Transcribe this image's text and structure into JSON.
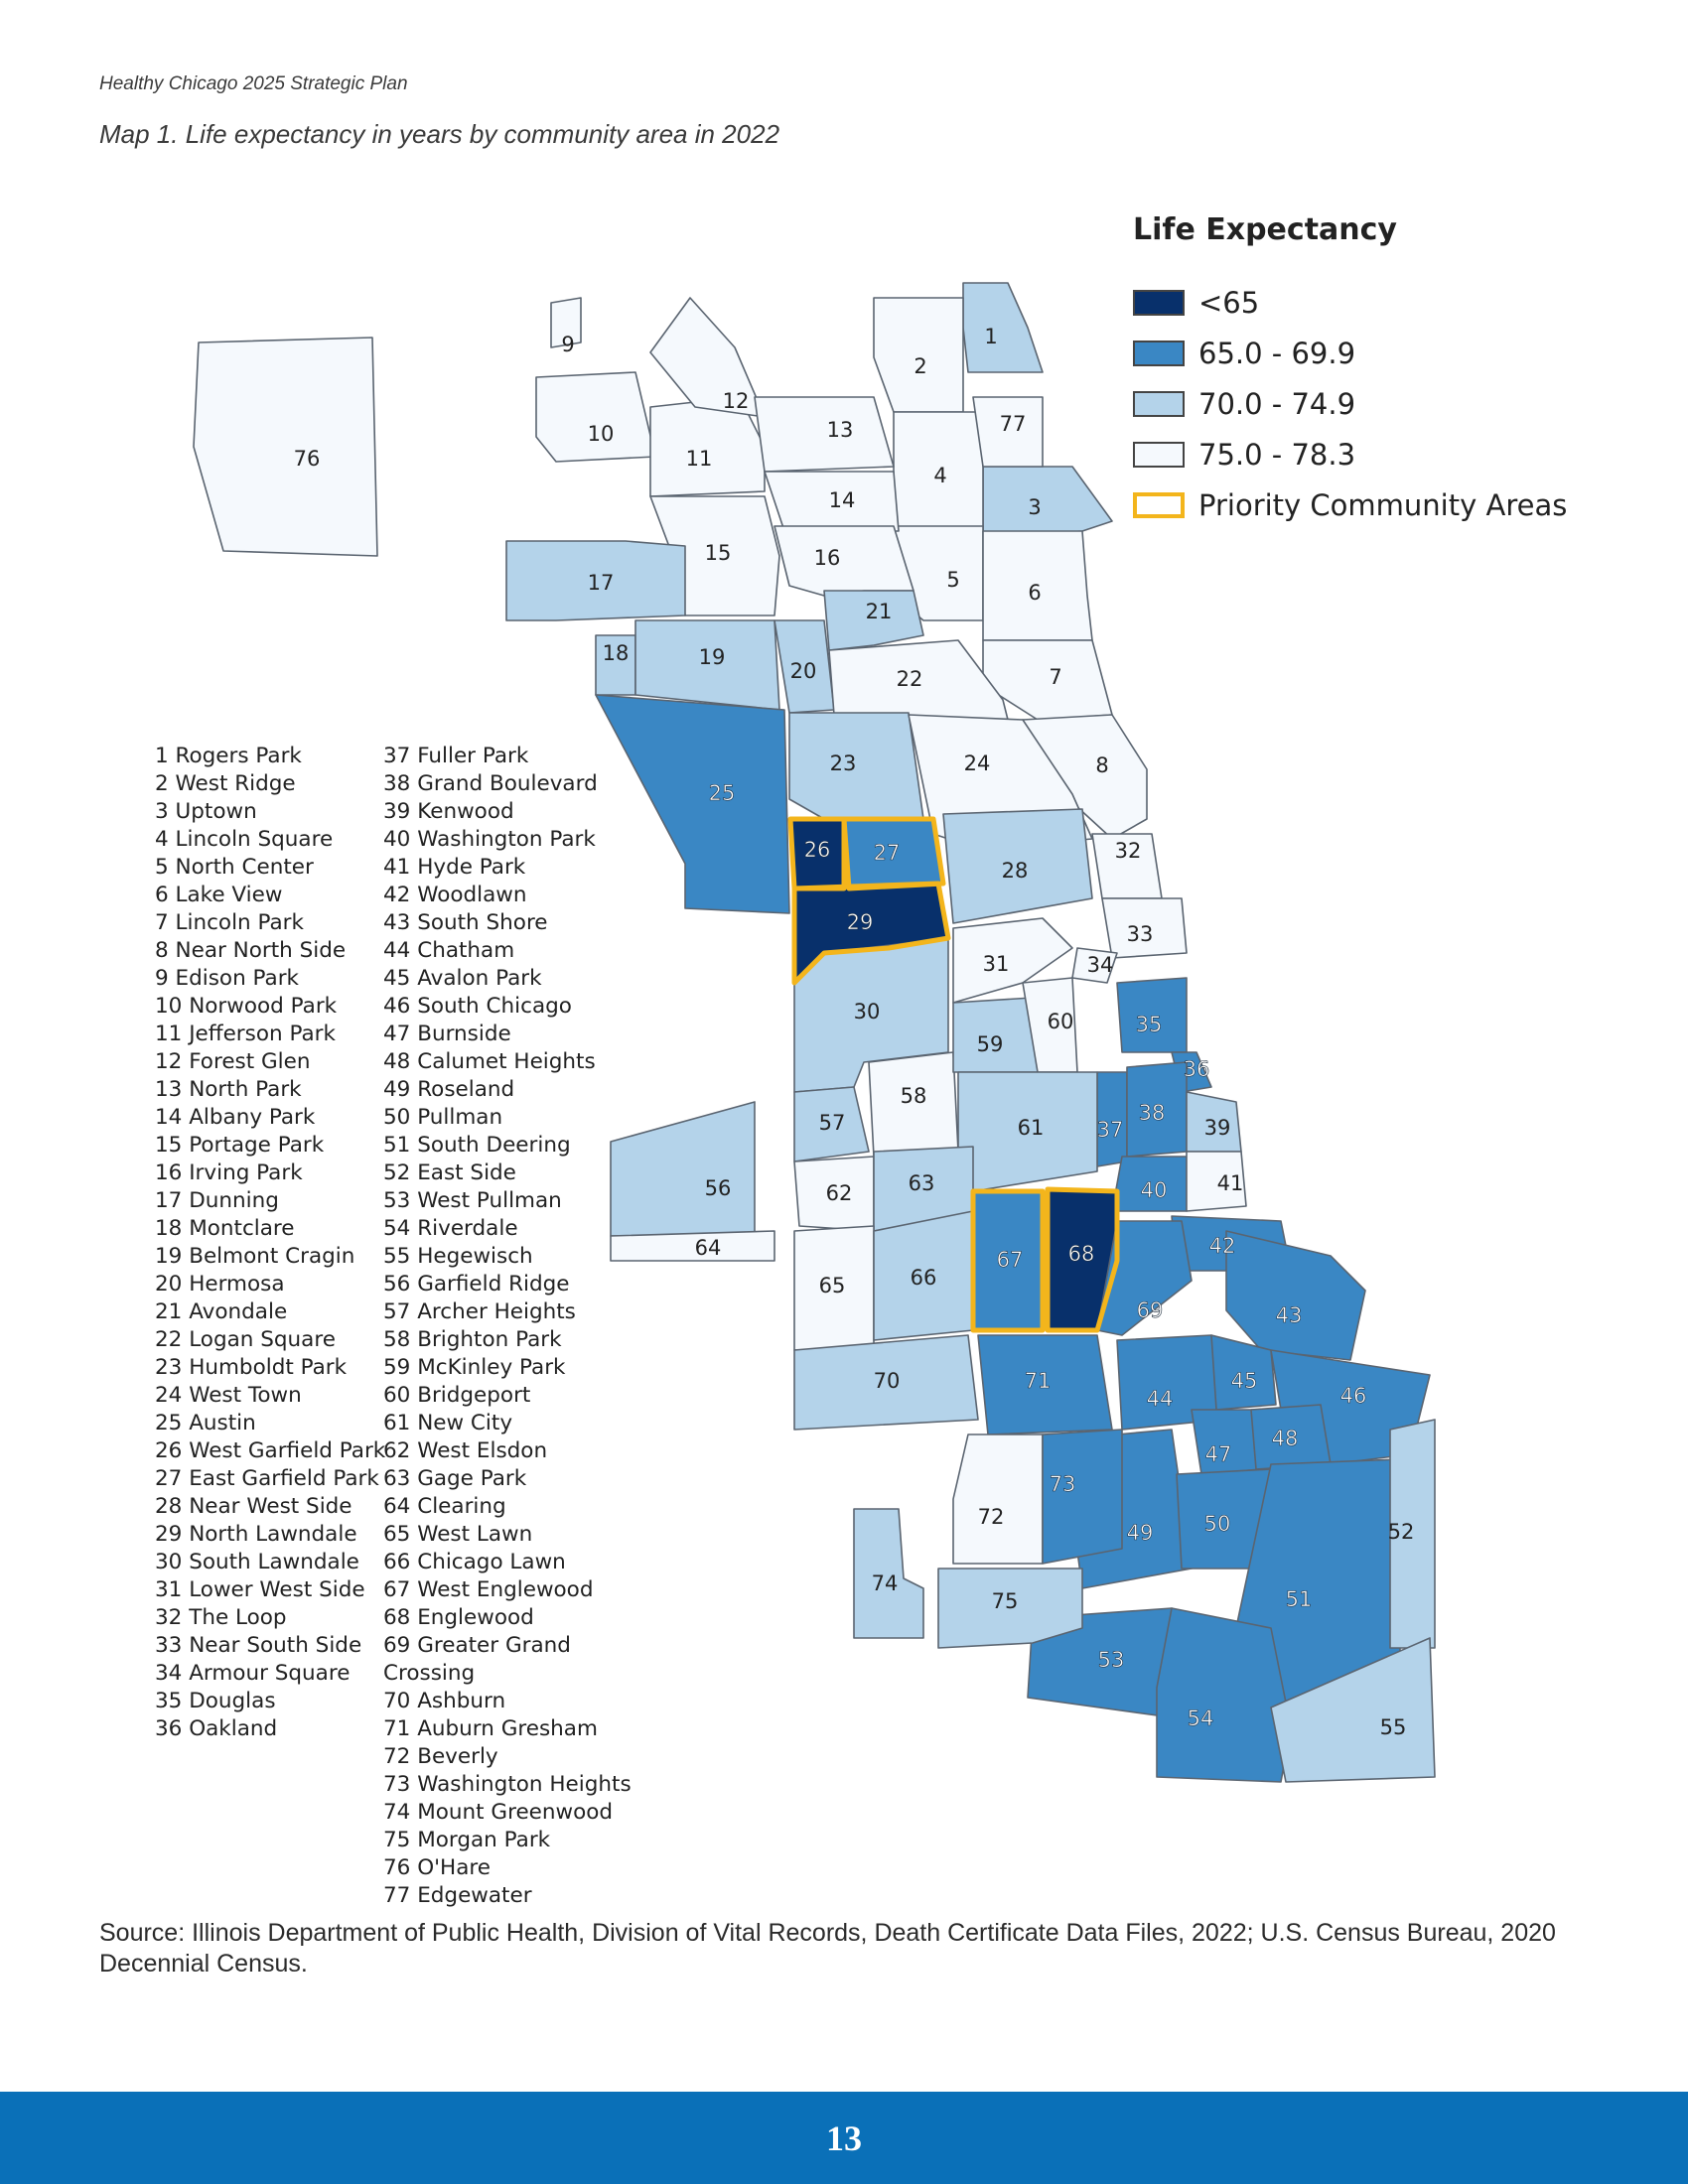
{
  "header": {
    "title": "Healthy Chicago 2025 Strategic Plan"
  },
  "caption": "Map 1.  Life expectancy in years by community area in 2022",
  "legend": {
    "title": "Life Expectancy",
    "items": [
      {
        "label": "<65",
        "color": "#08306b",
        "kind": "fill"
      },
      {
        "label": "65.0 - 69.9",
        "color": "#3a87c4",
        "kind": "fill"
      },
      {
        "label": "70.0 - 74.9",
        "color": "#b4d3ea",
        "kind": "fill"
      },
      {
        "label": "75.0 - 78.3",
        "color": "#f5f9fd",
        "kind": "fill"
      },
      {
        "label": "Priority Community Areas",
        "color": "#f3b51c",
        "kind": "outline"
      }
    ]
  },
  "colors": {
    "border": "#5a6470",
    "priority_outline": "#f3b51c",
    "footer": "#0a70b8"
  },
  "map": {
    "class_values": {
      "a": "<65",
      "b": "65.0 - 69.9",
      "c": "70.0 - 74.9",
      "d": "75.0 - 78.3"
    },
    "areas": [
      {
        "id": "1",
        "cls": "c"
      },
      {
        "id": "2",
        "cls": "d"
      },
      {
        "id": "3",
        "cls": "c"
      },
      {
        "id": "4",
        "cls": "d"
      },
      {
        "id": "5",
        "cls": "d"
      },
      {
        "id": "6",
        "cls": "d"
      },
      {
        "id": "7",
        "cls": "d"
      },
      {
        "id": "8",
        "cls": "d"
      },
      {
        "id": "9",
        "cls": "d"
      },
      {
        "id": "10",
        "cls": "d"
      },
      {
        "id": "11",
        "cls": "d"
      },
      {
        "id": "12",
        "cls": "d"
      },
      {
        "id": "13",
        "cls": "d"
      },
      {
        "id": "14",
        "cls": "d"
      },
      {
        "id": "15",
        "cls": "d"
      },
      {
        "id": "16",
        "cls": "d"
      },
      {
        "id": "17",
        "cls": "c"
      },
      {
        "id": "18",
        "cls": "c"
      },
      {
        "id": "19",
        "cls": "c"
      },
      {
        "id": "20",
        "cls": "c"
      },
      {
        "id": "21",
        "cls": "c"
      },
      {
        "id": "22",
        "cls": "d"
      },
      {
        "id": "23",
        "cls": "c"
      },
      {
        "id": "24",
        "cls": "d"
      },
      {
        "id": "25",
        "cls": "b"
      },
      {
        "id": "26",
        "cls": "a",
        "priority": true
      },
      {
        "id": "27",
        "cls": "b",
        "priority": true
      },
      {
        "id": "28",
        "cls": "c"
      },
      {
        "id": "29",
        "cls": "a",
        "priority": true
      },
      {
        "id": "30",
        "cls": "c"
      },
      {
        "id": "31",
        "cls": "d"
      },
      {
        "id": "32",
        "cls": "d"
      },
      {
        "id": "33",
        "cls": "d"
      },
      {
        "id": "34",
        "cls": "d"
      },
      {
        "id": "35",
        "cls": "b"
      },
      {
        "id": "36",
        "cls": "b"
      },
      {
        "id": "37",
        "cls": "b"
      },
      {
        "id": "38",
        "cls": "b"
      },
      {
        "id": "39",
        "cls": "c"
      },
      {
        "id": "40",
        "cls": "b"
      },
      {
        "id": "41",
        "cls": "d"
      },
      {
        "id": "42",
        "cls": "b"
      },
      {
        "id": "43",
        "cls": "b"
      },
      {
        "id": "44",
        "cls": "b"
      },
      {
        "id": "45",
        "cls": "b"
      },
      {
        "id": "46",
        "cls": "b"
      },
      {
        "id": "47",
        "cls": "b"
      },
      {
        "id": "48",
        "cls": "b"
      },
      {
        "id": "49",
        "cls": "b"
      },
      {
        "id": "50",
        "cls": "b"
      },
      {
        "id": "51",
        "cls": "b"
      },
      {
        "id": "52",
        "cls": "c"
      },
      {
        "id": "53",
        "cls": "b"
      },
      {
        "id": "54",
        "cls": "b"
      },
      {
        "id": "55",
        "cls": "c"
      },
      {
        "id": "56",
        "cls": "c"
      },
      {
        "id": "57",
        "cls": "c"
      },
      {
        "id": "58",
        "cls": "d"
      },
      {
        "id": "59",
        "cls": "c"
      },
      {
        "id": "60",
        "cls": "d"
      },
      {
        "id": "61",
        "cls": "c"
      },
      {
        "id": "62",
        "cls": "d"
      },
      {
        "id": "63",
        "cls": "c"
      },
      {
        "id": "64",
        "cls": "d"
      },
      {
        "id": "65",
        "cls": "d"
      },
      {
        "id": "66",
        "cls": "c"
      },
      {
        "id": "67",
        "cls": "b",
        "priority": true
      },
      {
        "id": "68",
        "cls": "a",
        "priority": true
      },
      {
        "id": "69",
        "cls": "b"
      },
      {
        "id": "70",
        "cls": "c"
      },
      {
        "id": "71",
        "cls": "b"
      },
      {
        "id": "72",
        "cls": "d"
      },
      {
        "id": "73",
        "cls": "b"
      },
      {
        "id": "74",
        "cls": "c"
      },
      {
        "id": "75",
        "cls": "c"
      },
      {
        "id": "76",
        "cls": "d"
      },
      {
        "id": "77",
        "cls": "d"
      }
    ]
  },
  "community_names_col1": [
    "1 Rogers Park",
    "2 West Ridge",
    "3 Uptown",
    "4 Lincoln Square",
    "5 North Center",
    "6 Lake View",
    "7 Lincoln Park",
    "8 Near North Side",
    "9 Edison Park",
    "10 Norwood Park",
    "11 Jefferson Park",
    "12 Forest Glen",
    "13 North Park",
    "14 Albany Park",
    "15 Portage Park",
    "16 Irving Park",
    "17 Dunning",
    "18 Montclare",
    "19 Belmont Cragin",
    "20 Hermosa",
    "21 Avondale",
    "22 Logan Square",
    "23 Humboldt Park",
    "24 West Town",
    "25 Austin",
    "26 West Garfield Park",
    "27 East Garfield Park",
    "28 Near West Side",
    "29 North Lawndale",
    "30 South Lawndale",
    "31 Lower West Side",
    "32 The Loop",
    "33 Near South Side",
    "34 Armour Square",
    "35 Douglas",
    "36 Oakland"
  ],
  "community_names_col2": [
    "37 Fuller Park",
    "38 Grand Boulevard",
    "39 Kenwood",
    "40 Washington Park",
    "41 Hyde Park",
    "42 Woodlawn",
    "43 South Shore",
    "44 Chatham",
    "45 Avalon Park",
    "46 South Chicago",
    "47 Burnside",
    "48 Calumet Heights",
    "49 Roseland",
    "50 Pullman",
    "51 South Deering",
    "52 East Side",
    "53 West Pullman",
    "54 Riverdale",
    "55 Hegewisch",
    "56 Garfield Ridge",
    "57 Archer Heights",
    "58 Brighton Park",
    "59 McKinley Park",
    "60 Bridgeport",
    "61 New City",
    "62 West Elsdon",
    "63 Gage Park",
    "64 Clearing",
    "65 West Lawn",
    "66 Chicago Lawn",
    "67 West Englewood",
    "68 Englewood",
    "69 Greater Grand",
    "Crossing",
    "70 Ashburn",
    "71 Auburn Gresham",
    "72 Beverly",
    "73 Washington Heights",
    "74 Mount Greenwood",
    "75 Morgan Park",
    "76 O'Hare",
    "77 Edgewater"
  ],
  "source": "Source: Illinois Department of Public Health, Division of Vital Records, Death Certificate Data Files, 2022; U.S. Census Bureau, 2020 Decennial Census.",
  "page_number": "13"
}
